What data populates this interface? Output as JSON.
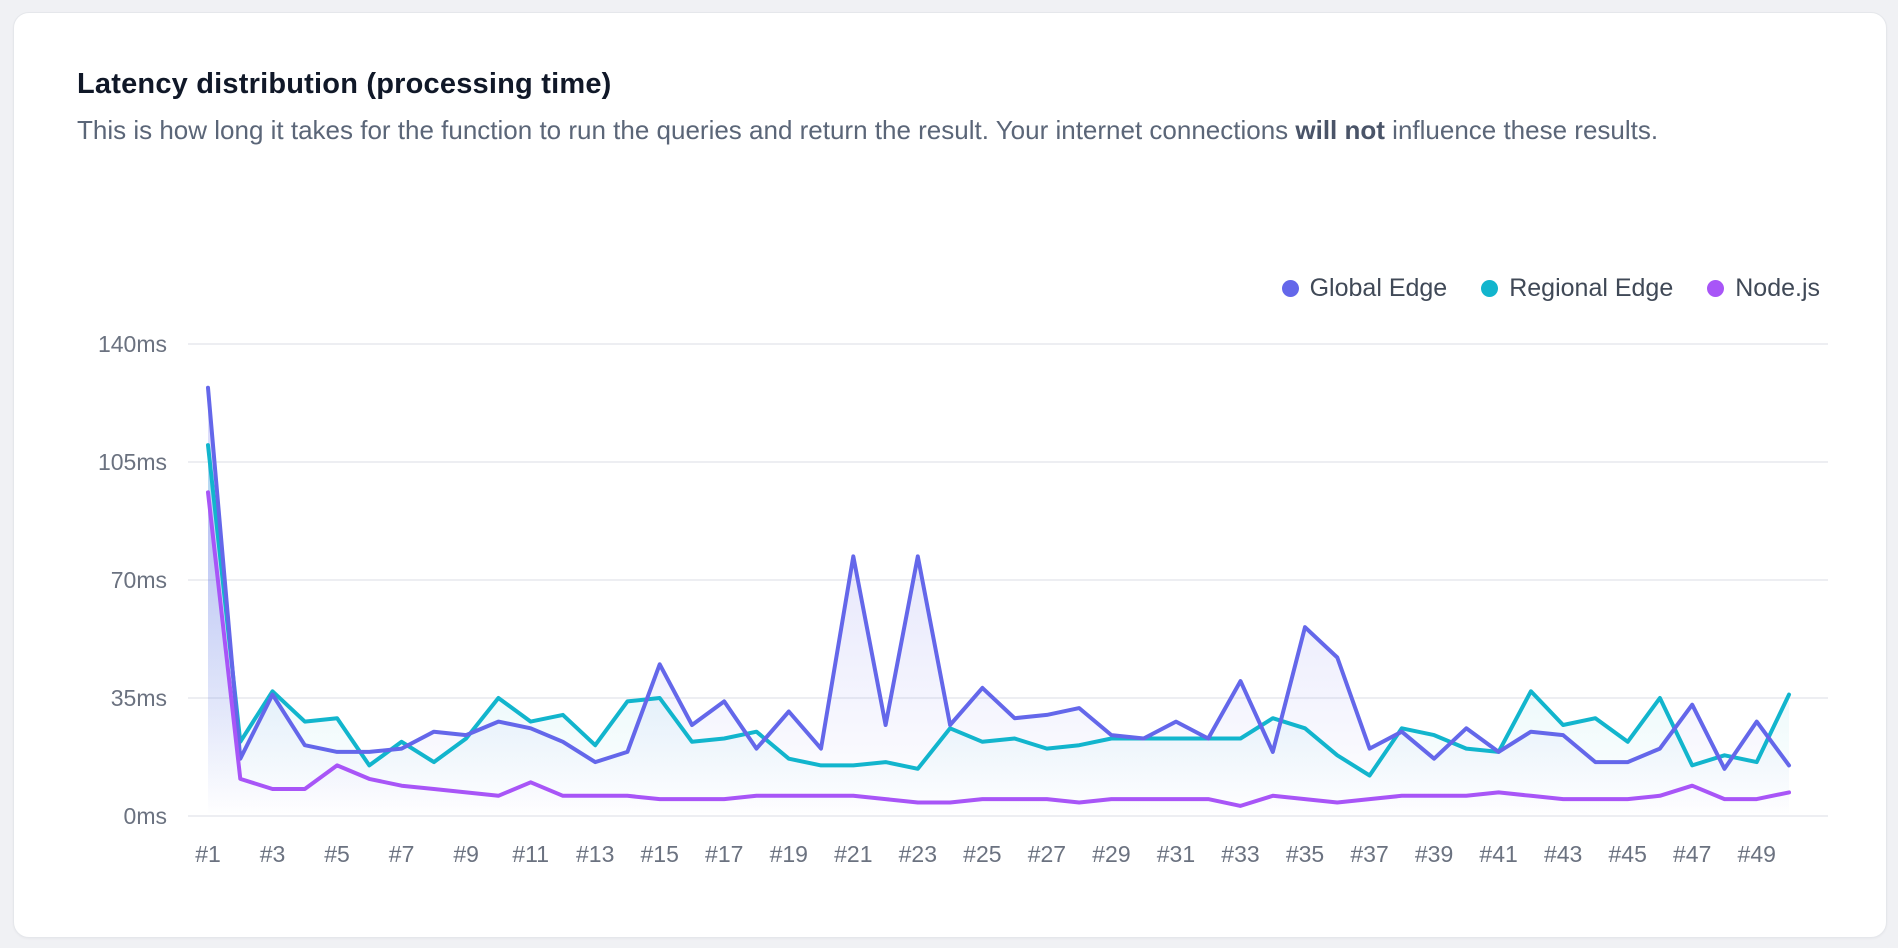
{
  "card": {
    "title": "Latency distribution (processing time)",
    "subtitle": {
      "before": "This is how long it takes for the function to run the queries and return the result. Your internet connections ",
      "bold": "will not",
      "after": " influence these results."
    }
  },
  "theme": {
    "page_background": "#f0f1f4",
    "card_background": "#ffffff",
    "card_border": "#e5e7eb",
    "title_color": "#101828",
    "subtitle_color": "#5b6678",
    "grid_color": "#e7e9ee",
    "axis_label_color": "#6b7280",
    "global_edge_color": "#6467ea",
    "regional_edge_color": "#12b5cd",
    "nodejs_color": "#a855f7"
  },
  "chart_data": {
    "type": "line",
    "title": "Latency distribution (processing time)",
    "num_points": 50,
    "x_tick_labels": [
      "#1",
      "#3",
      "#5",
      "#7",
      "#9",
      "#11",
      "#13",
      "#15",
      "#17",
      "#19",
      "#21",
      "#23",
      "#25",
      "#27",
      "#29",
      "#31",
      "#33",
      "#35",
      "#37",
      "#39",
      "#41",
      "#43",
      "#45",
      "#47",
      "#49"
    ],
    "y_unit": "ms",
    "y_ticks": [
      0,
      35,
      70,
      105,
      140
    ],
    "y_tick_labels": [
      "0ms",
      "35ms",
      "70ms",
      "105ms",
      "140ms"
    ],
    "ylim": [
      0,
      140
    ],
    "grid": "horizontal-only",
    "legend_position": "top-right",
    "area_fill": "gradient-fade-to-bottom",
    "series": [
      {
        "name": "Global Edge",
        "color": "#6467ea",
        "values": [
          127,
          17,
          36,
          21,
          19,
          19,
          20,
          25,
          24,
          28,
          26,
          22,
          16,
          19,
          45,
          27,
          34,
          20,
          31,
          20,
          77,
          27,
          77,
          27,
          38,
          29,
          30,
          32,
          24,
          23,
          28,
          23,
          40,
          19,
          56,
          47,
          20,
          25,
          17,
          26,
          19,
          25,
          24,
          16,
          16,
          20,
          33,
          14,
          28,
          15
        ]
      },
      {
        "name": "Regional Edge",
        "color": "#12b5cd",
        "values": [
          110,
          22,
          37,
          28,
          29,
          15,
          22,
          16,
          23,
          35,
          28,
          30,
          21,
          34,
          35,
          22,
          23,
          25,
          17,
          15,
          15,
          16,
          14,
          26,
          22,
          23,
          20,
          21,
          23,
          23,
          23,
          23,
          23,
          29,
          26,
          18,
          12,
          26,
          24,
          20,
          19,
          37,
          27,
          29,
          22,
          35,
          15,
          18,
          16,
          36
        ]
      },
      {
        "name": "Node.js",
        "color": "#a855f7",
        "values": [
          96,
          11,
          8,
          8,
          15,
          11,
          9,
          8,
          7,
          6,
          10,
          6,
          6,
          6,
          5,
          5,
          5,
          6,
          6,
          6,
          6,
          5,
          4,
          4,
          5,
          5,
          5,
          4,
          5,
          5,
          5,
          5,
          3,
          6,
          5,
          4,
          5,
          6,
          6,
          6,
          7,
          6,
          5,
          5,
          5,
          6,
          9,
          5,
          5,
          7
        ]
      }
    ]
  }
}
